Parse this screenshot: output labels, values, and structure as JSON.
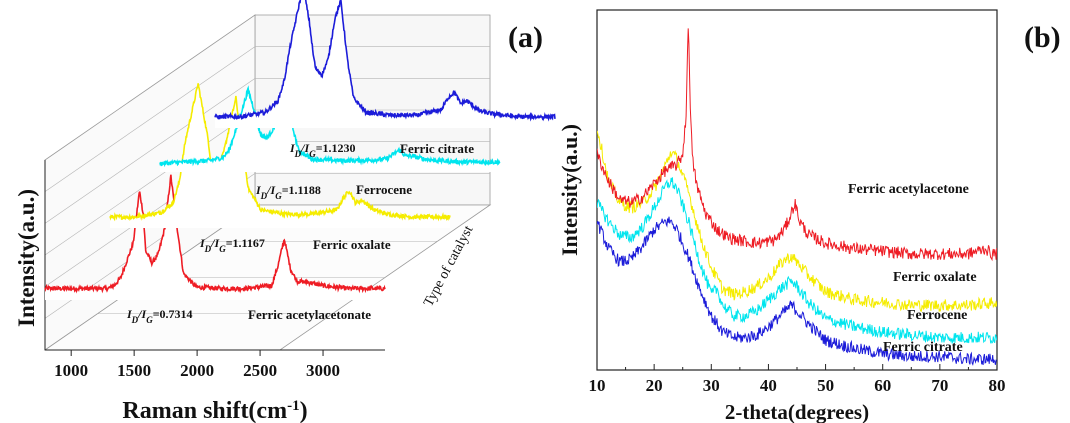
{
  "chart_data": [
    {
      "type": "line",
      "panel_label": "(a)",
      "xlabel": "Raman shift(cm",
      "xlabel_sup": "-1",
      "xlabel_end": ")",
      "ylabel": "Intensity(a.u.)",
      "zlabel": "Type of catalyst",
      "xlim": [
        800,
        3500
      ],
      "xticks": [
        "1000",
        "1500",
        "2000",
        "2500",
        "3000"
      ],
      "xtick_values": [
        1000,
        1500,
        2000,
        2500,
        3000
      ],
      "grid": true,
      "series": [
        {
          "name": "Ferric acetylacetonate",
          "color": "#ee1c24",
          "ratio_main": "I",
          "ratio_sub1": "D",
          "ratio_slash": "/I",
          "ratio_sub2": "G",
          "ratio_value": "=0.7314",
          "x": [
            800,
            1000,
            1200,
            1300,
            1350,
            1400,
            1500,
            1550,
            1580,
            1600,
            1650,
            1700,
            1750,
            1800,
            1850,
            1900,
            2000,
            2200,
            2400,
            2600,
            2650,
            2700,
            2750,
            2800,
            2900,
            3000,
            3200,
            3400
          ],
          "y": [
            0.05,
            0.05,
            0.05,
            0.05,
            0.07,
            0.12,
            0.35,
            0.7,
            0.55,
            0.3,
            0.22,
            0.28,
            0.45,
            0.8,
            0.45,
            0.15,
            0.06,
            0.05,
            0.05,
            0.07,
            0.2,
            0.38,
            0.18,
            0.1,
            0.09,
            0.07,
            0.05,
            0.05
          ]
        },
        {
          "name": "Ferric oxalate",
          "color": "#f5ec00",
          "ratio_main": "I",
          "ratio_sub1": "D",
          "ratio_slash": "/I",
          "ratio_sub2": "G",
          "ratio_value": "=1.1167",
          "x": [
            800,
            1000,
            1200,
            1300,
            1350,
            1400,
            1500,
            1550,
            1580,
            1600,
            1650,
            1700,
            1750,
            1800,
            1850,
            1900,
            2000,
            2200,
            2400,
            2600,
            2650,
            2700,
            2750,
            2800,
            2900,
            3000,
            3200,
            3400
          ],
          "y": [
            0.05,
            0.05,
            0.08,
            0.15,
            0.3,
            0.6,
            1.0,
            0.75,
            0.6,
            0.45,
            0.4,
            0.5,
            0.7,
            0.9,
            0.55,
            0.25,
            0.1,
            0.07,
            0.07,
            0.1,
            0.18,
            0.24,
            0.15,
            0.17,
            0.1,
            0.07,
            0.05,
            0.05
          ]
        },
        {
          "name": "Ferrocene",
          "color": "#00e5ee",
          "ratio_main": "I",
          "ratio_sub1": "D",
          "ratio_slash": "/I",
          "ratio_sub2": "G",
          "ratio_value": "=1.1188",
          "x": [
            800,
            1000,
            1200,
            1300,
            1350,
            1400,
            1500,
            1550,
            1580,
            1600,
            1650,
            1700,
            1750,
            1800,
            1850,
            1900,
            2000,
            2200,
            2400,
            2600,
            2650,
            2700,
            2750,
            2800,
            2900,
            3000,
            3200,
            3400
          ],
          "y": [
            0.03,
            0.04,
            0.05,
            0.07,
            0.12,
            0.25,
            0.52,
            0.38,
            0.28,
            0.22,
            0.2,
            0.26,
            0.4,
            0.48,
            0.28,
            0.12,
            0.06,
            0.05,
            0.05,
            0.06,
            0.09,
            0.12,
            0.08,
            0.08,
            0.06,
            0.05,
            0.04,
            0.04
          ]
        },
        {
          "name": "Ferric citrate",
          "color": "#1c1cd9",
          "ratio_main": "I",
          "ratio_sub1": "D",
          "ratio_slash": "/I",
          "ratio_sub2": "G",
          "ratio_value": "=1.1230",
          "x": [
            800,
            1000,
            1200,
            1300,
            1350,
            1400,
            1500,
            1550,
            1580,
            1600,
            1650,
            1700,
            1750,
            1800,
            1850,
            1900,
            2000,
            2200,
            2400,
            2600,
            2650,
            2700,
            2750,
            2800,
            2900,
            3000,
            3200,
            3400
          ],
          "y": [
            0.05,
            0.05,
            0.08,
            0.16,
            0.3,
            0.55,
            0.95,
            0.7,
            0.48,
            0.38,
            0.34,
            0.45,
            0.72,
            0.85,
            0.45,
            0.18,
            0.08,
            0.06,
            0.06,
            0.1,
            0.18,
            0.22,
            0.14,
            0.16,
            0.09,
            0.07,
            0.05,
            0.05
          ]
        }
      ]
    },
    {
      "type": "line",
      "panel_label": "(b)",
      "xlabel": "2-theta(degrees)",
      "ylabel": "Intensity(a.u.)",
      "xlim": [
        10,
        80
      ],
      "xticks": [
        "10",
        "20",
        "30",
        "40",
        "50",
        "60",
        "70",
        "80"
      ],
      "xtick_values": [
        10,
        20,
        30,
        40,
        50,
        60,
        70,
        80
      ],
      "grid": false,
      "series": [
        {
          "name": "Ferric acetylacetone",
          "color": "#ee1c24",
          "x": [
            10,
            12,
            14,
            16,
            18,
            20,
            22,
            24,
            25,
            25.6,
            26,
            26.3,
            26.7,
            27.5,
            29,
            31,
            33,
            35,
            38,
            41,
            42,
            43,
            44,
            44.6,
            45.5,
            47,
            50,
            55,
            60,
            65,
            70,
            75,
            78,
            79,
            80
          ],
          "y": [
            0.8,
            0.7,
            0.63,
            0.62,
            0.64,
            0.69,
            0.74,
            0.76,
            0.8,
            0.95,
            1.3,
            1.0,
            0.78,
            0.68,
            0.58,
            0.52,
            0.49,
            0.48,
            0.47,
            0.48,
            0.5,
            0.53,
            0.58,
            0.62,
            0.55,
            0.5,
            0.47,
            0.45,
            0.44,
            0.43,
            0.43,
            0.43,
            0.45,
            0.43,
            0.43
          ]
        },
        {
          "name": "Ferric oxalate",
          "color": "#f5ec00",
          "x": [
            10,
            12,
            14,
            16,
            18,
            20,
            22,
            23,
            24,
            26,
            28,
            30,
            32,
            34,
            36,
            38,
            40,
            42,
            43,
            44,
            45,
            47,
            50,
            55,
            60,
            65,
            70,
            75,
            80
          ],
          "y": [
            0.9,
            0.7,
            0.62,
            0.6,
            0.62,
            0.67,
            0.76,
            0.81,
            0.78,
            0.66,
            0.5,
            0.38,
            0.3,
            0.28,
            0.29,
            0.31,
            0.34,
            0.39,
            0.41,
            0.42,
            0.4,
            0.35,
            0.29,
            0.26,
            0.25,
            0.24,
            0.24,
            0.24,
            0.25
          ]
        },
        {
          "name": "Ferrocene",
          "color": "#00e5ee",
          "x": [
            10,
            12,
            14,
            16,
            18,
            20,
            22,
            23,
            24,
            26,
            28,
            30,
            31,
            32,
            34,
            36,
            38,
            40,
            42,
            44,
            45,
            47,
            50,
            55,
            60,
            65,
            70,
            75,
            80
          ],
          "y": [
            0.62,
            0.55,
            0.5,
            0.49,
            0.53,
            0.6,
            0.68,
            0.7,
            0.67,
            0.55,
            0.4,
            0.28,
            0.3,
            0.24,
            0.2,
            0.2,
            0.22,
            0.26,
            0.3,
            0.33,
            0.31,
            0.25,
            0.19,
            0.16,
            0.14,
            0.13,
            0.12,
            0.12,
            0.12
          ]
        },
        {
          "name": "Ferric citrate",
          "color": "#1c1cd9",
          "x": [
            10,
            12,
            14,
            16,
            18,
            20,
            22,
            23,
            24,
            26,
            28,
            30,
            32,
            34,
            36,
            38,
            40,
            42,
            44,
            45,
            47,
            50,
            55,
            60,
            65,
            70,
            75,
            80
          ],
          "y": [
            0.55,
            0.45,
            0.4,
            0.41,
            0.46,
            0.52,
            0.55,
            0.55,
            0.52,
            0.42,
            0.3,
            0.2,
            0.14,
            0.12,
            0.12,
            0.13,
            0.16,
            0.2,
            0.24,
            0.22,
            0.17,
            0.11,
            0.08,
            0.06,
            0.05,
            0.05,
            0.04,
            0.04
          ]
        }
      ]
    }
  ]
}
